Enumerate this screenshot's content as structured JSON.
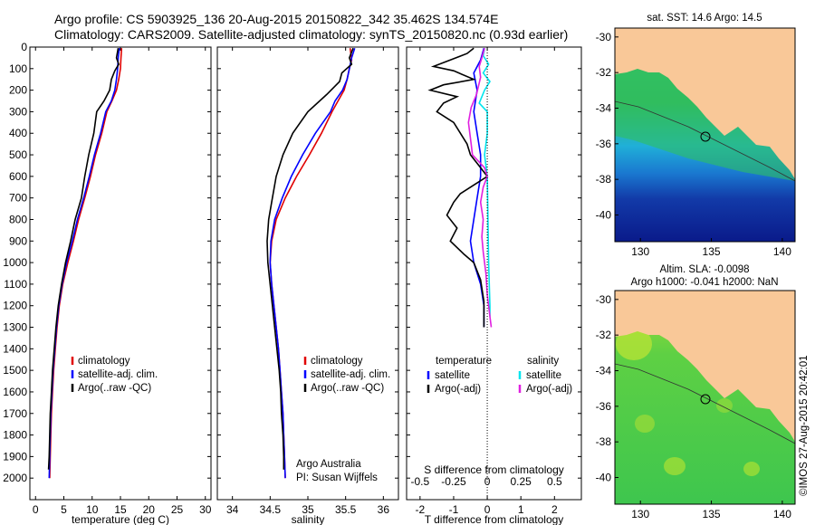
{
  "header": {
    "title_line1": "Argo profile: CS 5903925_136 20-Aug-2015 20150822_342 35.462S 134.574E",
    "title_line2": "Climatology: CARS2009. Satellite-adjusted climatology: synTS_20150820.nc (0.93d earlier)"
  },
  "colors": {
    "climatology": "#e00000",
    "satellite": "#0000ff",
    "argo": "#000000",
    "salinity_satellite": "#00e5ee",
    "salinity_argo": "#e020e0",
    "land": "#f9c898"
  },
  "credit": "©IMOS 27-Aug-2015 20:42:01",
  "chart_data": [
    {
      "type": "line",
      "panel": "temperature",
      "xlabel": "temperature (deg C)",
      "ylabel": "",
      "xlim": [
        -1,
        31
      ],
      "ylim": [
        2100,
        0
      ],
      "xticks": [
        "0",
        "5",
        "10",
        "15",
        "20",
        "25",
        "30"
      ],
      "yticks": [
        "0",
        "100",
        "200",
        "300",
        "400",
        "500",
        "600",
        "700",
        "800",
        "900",
        "1000",
        "1100",
        "1200",
        "1300",
        "1400",
        "1500",
        "1600",
        "1700",
        "1800",
        "1900",
        "2000"
      ],
      "legend": {
        "position": "lower-center",
        "entries": [
          "climatology",
          "satellite-adj. clim.",
          "Argo(..raw -QC)"
        ]
      },
      "series": [
        {
          "name": "climatology",
          "color": "#e00000",
          "points": [
            [
              15.2,
              5
            ],
            [
              15.1,
              50
            ],
            [
              15.0,
              100
            ],
            [
              14.7,
              150
            ],
            [
              14.3,
              200
            ],
            [
              13.5,
              250
            ],
            [
              12.6,
              300
            ],
            [
              11.7,
              400
            ],
            [
              10.6,
              500
            ],
            [
              9.7,
              600
            ],
            [
              8.7,
              700
            ],
            [
              7.6,
              800
            ],
            [
              6.7,
              900
            ],
            [
              5.7,
              1000
            ],
            [
              4.8,
              1100
            ],
            [
              4.2,
              1200
            ],
            [
              3.8,
              1300
            ],
            [
              3.5,
              1400
            ],
            [
              3.2,
              1500
            ],
            [
              3.0,
              1600
            ],
            [
              2.8,
              1700
            ],
            [
              2.7,
              1800
            ],
            [
              2.6,
              1900
            ],
            [
              2.5,
              2000
            ]
          ]
        },
        {
          "name": "satellite-adj. clim.",
          "color": "#0000ff",
          "points": [
            [
              14.8,
              5
            ],
            [
              14.6,
              50
            ],
            [
              14.5,
              100
            ],
            [
              14.3,
              150
            ],
            [
              14.0,
              200
            ],
            [
              13.4,
              250
            ],
            [
              12.4,
              300
            ],
            [
              11.5,
              400
            ],
            [
              10.4,
              500
            ],
            [
              9.5,
              600
            ],
            [
              8.5,
              700
            ],
            [
              7.4,
              800
            ],
            [
              6.5,
              900
            ],
            [
              5.5,
              1000
            ],
            [
              4.7,
              1100
            ],
            [
              4.1,
              1200
            ],
            [
              3.7,
              1300
            ],
            [
              3.4,
              1400
            ],
            [
              3.1,
              1500
            ],
            [
              2.9,
              1600
            ],
            [
              2.7,
              1700
            ],
            [
              2.6,
              1800
            ],
            [
              2.5,
              1900
            ],
            [
              2.4,
              2000
            ]
          ]
        },
        {
          "name": "Argo(..raw -QC)",
          "color": "#000000",
          "points": [
            [
              14.6,
              5
            ],
            [
              14.3,
              50
            ],
            [
              14.7,
              80
            ],
            [
              14.0,
              110
            ],
            [
              13.4,
              150
            ],
            [
              13.1,
              200
            ],
            [
              12.1,
              250
            ],
            [
              10.8,
              300
            ],
            [
              10.3,
              400
            ],
            [
              9.4,
              500
            ],
            [
              8.7,
              600
            ],
            [
              8.1,
              700
            ],
            [
              7.0,
              800
            ],
            [
              6.2,
              900
            ],
            [
              5.3,
              1000
            ],
            [
              4.6,
              1100
            ],
            [
              4.0,
              1200
            ],
            [
              3.6,
              1300
            ],
            [
              3.3,
              1400
            ],
            [
              3.0,
              1500
            ],
            [
              2.8,
              1600
            ],
            [
              2.6,
              1700
            ],
            [
              2.5,
              1800
            ],
            [
              2.4,
              1900
            ],
            [
              2.3,
              1960
            ]
          ]
        }
      ]
    },
    {
      "type": "line",
      "panel": "salinity",
      "xlabel": "salinity",
      "xlim": [
        33.8,
        36.2
      ],
      "ylim": [
        2100,
        0
      ],
      "xticks": [
        "34",
        "34.5",
        "35",
        "35.5",
        "36"
      ],
      "legend": {
        "position": "lower-right",
        "entries": [
          "climatology",
          "satellite-adj. clim.",
          "Argo(..raw -QC)"
        ]
      },
      "annotations": [
        "Argo Australia",
        "PI: Susan Wijffels"
      ],
      "series": [
        {
          "name": "climatology",
          "color": "#e00000",
          "points": [
            [
              35.56,
              5
            ],
            [
              35.58,
              60
            ],
            [
              35.55,
              100
            ],
            [
              35.52,
              150
            ],
            [
              35.48,
              200
            ],
            [
              35.4,
              250
            ],
            [
              35.32,
              300
            ],
            [
              35.18,
              400
            ],
            [
              35.02,
              500
            ],
            [
              34.85,
              600
            ],
            [
              34.7,
              700
            ],
            [
              34.58,
              800
            ],
            [
              34.52,
              900
            ],
            [
              34.5,
              1000
            ],
            [
              34.52,
              1100
            ],
            [
              34.55,
              1200
            ],
            [
              34.58,
              1300
            ],
            [
              34.61,
              1400
            ],
            [
              34.63,
              1500
            ],
            [
              34.65,
              1600
            ],
            [
              34.67,
              1700
            ],
            [
              34.68,
              1800
            ],
            [
              34.69,
              1900
            ],
            [
              34.7,
              2000
            ]
          ]
        },
        {
          "name": "satellite-adj. clim.",
          "color": "#0000ff",
          "points": [
            [
              35.62,
              5
            ],
            [
              35.58,
              50
            ],
            [
              35.55,
              100
            ],
            [
              35.52,
              150
            ],
            [
              35.46,
              200
            ],
            [
              35.36,
              250
            ],
            [
              35.3,
              300
            ],
            [
              35.1,
              400
            ],
            [
              34.93,
              500
            ],
            [
              34.78,
              600
            ],
            [
              34.66,
              700
            ],
            [
              34.56,
              800
            ],
            [
              34.51,
              900
            ],
            [
              34.5,
              1000
            ],
            [
              34.52,
              1100
            ],
            [
              34.55,
              1200
            ],
            [
              34.58,
              1300
            ],
            [
              34.61,
              1400
            ],
            [
              34.63,
              1500
            ],
            [
              34.65,
              1600
            ],
            [
              34.67,
              1700
            ],
            [
              34.68,
              1800
            ],
            [
              34.69,
              1900
            ],
            [
              34.7,
              2000
            ]
          ]
        },
        {
          "name": "Argo(..raw -QC)",
          "color": "#000000",
          "points": [
            [
              35.6,
              5
            ],
            [
              35.55,
              50
            ],
            [
              35.58,
              80
            ],
            [
              35.45,
              120
            ],
            [
              35.42,
              160
            ],
            [
              35.25,
              220
            ],
            [
              35.0,
              300
            ],
            [
              34.8,
              400
            ],
            [
              34.67,
              500
            ],
            [
              34.58,
              600
            ],
            [
              34.53,
              700
            ],
            [
              34.48,
              800
            ],
            [
              34.46,
              900
            ],
            [
              34.47,
              1000
            ],
            [
              34.5,
              1100
            ],
            [
              34.53,
              1200
            ],
            [
              34.56,
              1300
            ],
            [
              34.59,
              1400
            ],
            [
              34.62,
              1500
            ],
            [
              34.64,
              1600
            ],
            [
              34.65,
              1700
            ],
            [
              34.67,
              1800
            ],
            [
              34.68,
              1900
            ],
            [
              34.68,
              1960
            ]
          ]
        }
      ]
    },
    {
      "type": "line",
      "panel": "difference",
      "xlabel": "T difference from climatology",
      "xlabel_top": "S difference from climatology",
      "xlim": [
        -2.4,
        2.8
      ],
      "ylim": [
        2100,
        0
      ],
      "xticks": [
        "-2",
        "-1",
        "0",
        "1",
        "2"
      ],
      "xticks_top": [
        "-0.5",
        "-0.25",
        "0",
        "0.25",
        "0.5"
      ],
      "legend": {
        "position": "lower-center",
        "temperature": {
          "title": "temperature",
          "entries": [
            "satellite",
            "Argo(-adj)"
          ]
        },
        "salinity": {
          "title": "salinity",
          "entries": [
            "satellite",
            "Argo(-adj)"
          ]
        }
      },
      "series": [
        {
          "name": "temperature satellite",
          "color": "#0000ff",
          "points": [
            [
              -0.1,
              5
            ],
            [
              -0.2,
              60
            ],
            [
              -0.4,
              120
            ],
            [
              -0.3,
              200
            ],
            [
              -0.4,
              300
            ],
            [
              -0.3,
              400
            ],
            [
              -0.2,
              500
            ],
            [
              -0.2,
              600
            ],
            [
              -0.3,
              700
            ],
            [
              -0.4,
              800
            ],
            [
              -0.5,
              900
            ],
            [
              -0.4,
              1000
            ],
            [
              -0.2,
              1100
            ],
            [
              -0.1,
              1200
            ],
            [
              -0.1,
              1300
            ]
          ]
        },
        {
          "name": "temperature Argo(-adj)",
          "color": "#000000",
          "points": [
            [
              -0.4,
              5
            ],
            [
              -0.6,
              30
            ],
            [
              -1.1,
              60
            ],
            [
              -1.6,
              90
            ],
            [
              -1.0,
              110
            ],
            [
              -0.4,
              150
            ],
            [
              -1.3,
              175
            ],
            [
              -1.7,
              200
            ],
            [
              -0.9,
              230
            ],
            [
              -1.3,
              260
            ],
            [
              -1.5,
              300
            ],
            [
              -1.0,
              350
            ],
            [
              -0.8,
              400
            ],
            [
              -0.6,
              450
            ],
            [
              -0.5,
              500
            ],
            [
              -0.2,
              560
            ],
            [
              0.0,
              600
            ],
            [
              -0.4,
              640
            ],
            [
              -0.8,
              680
            ],
            [
              -1.0,
              720
            ],
            [
              -1.2,
              780
            ],
            [
              -0.9,
              840
            ],
            [
              -1.1,
              900
            ],
            [
              -0.7,
              960
            ],
            [
              -0.4,
              1000
            ],
            [
              -0.2,
              1080
            ],
            [
              -0.1,
              1180
            ],
            [
              -0.1,
              1300
            ]
          ]
        },
        {
          "name": "salinity satellite",
          "color": "#00e5ee",
          "points": [
            [
              -0.02,
              5
            ],
            [
              -0.03,
              40
            ],
            [
              0.01,
              80
            ],
            [
              -0.03,
              120
            ],
            [
              0.02,
              160
            ],
            [
              -0.02,
              200
            ],
            [
              -0.06,
              260
            ],
            [
              0.0,
              300
            ],
            [
              0.0,
              400
            ],
            [
              -0.02,
              500
            ],
            [
              0.0,
              600
            ],
            [
              0.01,
              1000
            ],
            [
              0.02,
              1200
            ],
            [
              0.02,
              1250
            ]
          ]
        },
        {
          "name": "salinity Argo(-adj)",
          "color": "#e020e0",
          "points": [
            [
              -0.02,
              5
            ],
            [
              -0.04,
              50
            ],
            [
              -0.06,
              90
            ],
            [
              -0.05,
              140
            ],
            [
              -0.08,
              220
            ],
            [
              -0.12,
              280
            ],
            [
              -0.14,
              350
            ],
            [
              -0.12,
              450
            ],
            [
              -0.11,
              500
            ],
            [
              -0.02,
              560
            ],
            [
              0.0,
              600
            ],
            [
              -0.03,
              650
            ],
            [
              -0.05,
              720
            ],
            [
              -0.03,
              800
            ],
            [
              -0.04,
              880
            ],
            [
              -0.03,
              950
            ],
            [
              -0.01,
              1050
            ],
            [
              0.0,
              1150
            ],
            [
              0.02,
              1250
            ],
            [
              0.03,
              1300
            ]
          ]
        }
      ]
    },
    {
      "type": "heatmap",
      "panel": "sst-map",
      "title": "sat. SST: 14.6 Argo: 14.5",
      "xticks": [
        "130",
        "135",
        "140"
      ],
      "yticks": [
        "-30",
        "-32",
        "-34",
        "-36",
        "-38",
        "-40"
      ],
      "xlim": [
        128.2,
        140.9
      ],
      "ylim": [
        -41.5,
        -29.5
      ],
      "argo_position": [
        134.574,
        -35.462
      ]
    },
    {
      "type": "heatmap",
      "panel": "sla-map",
      "title": "Altim. SLA: -0.0098",
      "subtitle": "Argo h1000: -0.041 h2000: NaN",
      "xticks": [
        "130",
        "135",
        "140"
      ],
      "yticks": [
        "-30",
        "-32",
        "-34",
        "-36",
        "-38",
        "-40"
      ],
      "xlim": [
        128.2,
        140.9
      ],
      "ylim": [
        -41.5,
        -29.5
      ],
      "argo_position": [
        134.574,
        -35.462
      ]
    }
  ]
}
